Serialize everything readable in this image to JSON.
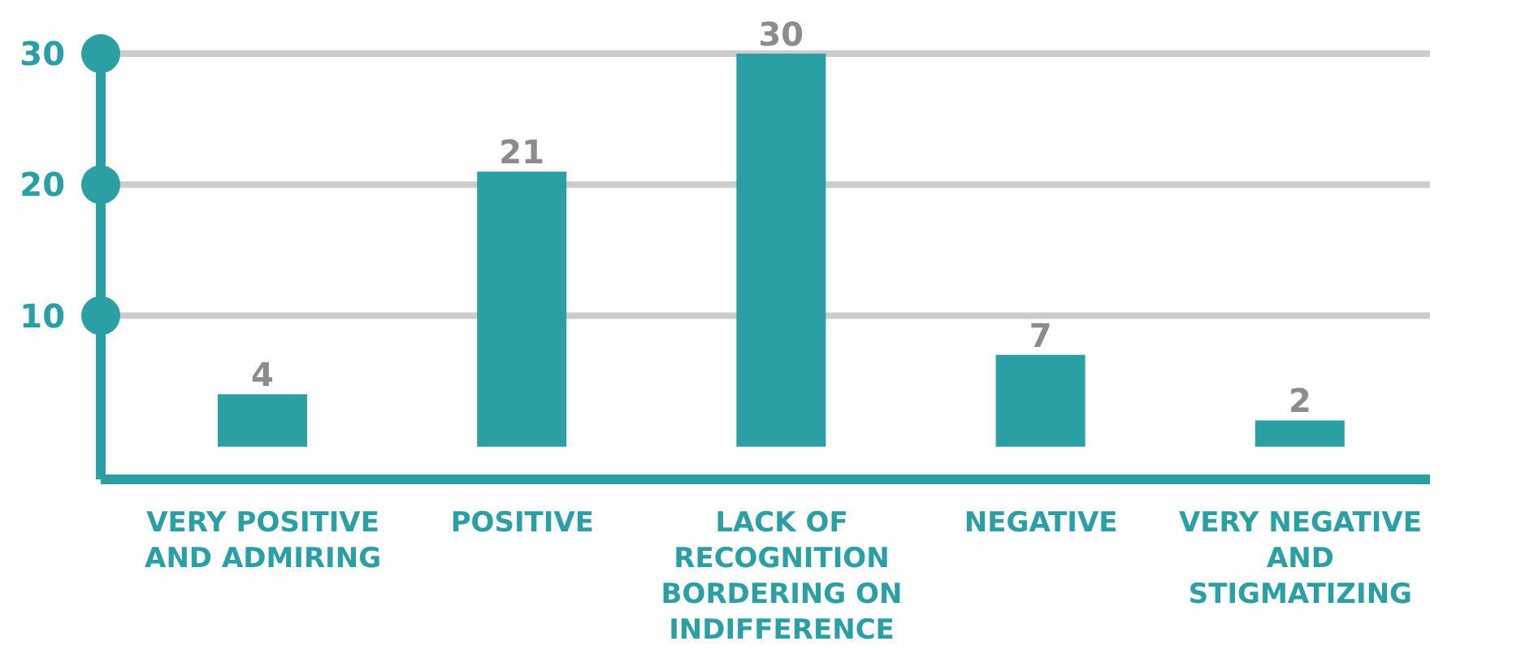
{
  "chart_data": {
    "type": "bar",
    "categories": [
      "VERY POSITIVE AND ADMIRING",
      "POSITIVE",
      "LACK OF RECOGNITION BORDERING ON INDIFFERENCE",
      "NEGATIVE",
      "VERY NEGATIVE AND STIGMATIZING"
    ],
    "values": [
      4,
      21,
      30,
      7,
      2
    ],
    "color": "#2a9fa4",
    "ylim": [
      -2.5,
      31
    ],
    "yticks": [
      10,
      20,
      30
    ],
    "grid": "y",
    "data_labels": true
  }
}
